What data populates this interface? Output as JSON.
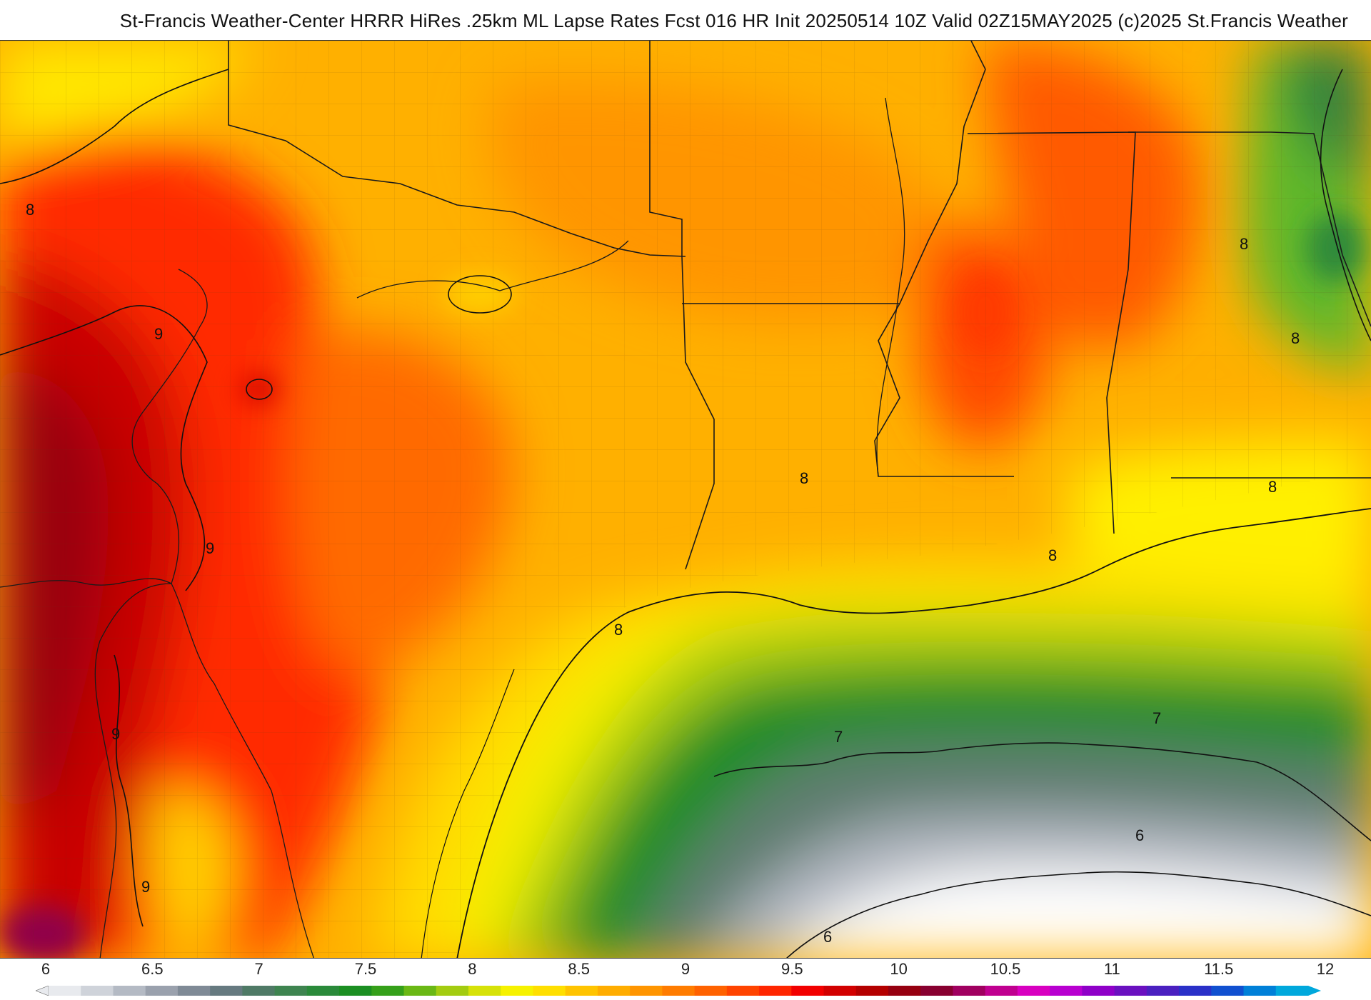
{
  "title": "St-Francis Weather-Center HRRR HiRes .25km ML Lapse Rates  Fcst 016 HR Init 20250514 10Z  Valid 02Z15MAY2025    (c)2025 St.Francis Weather",
  "contour_labels": [
    "8",
    "9",
    "9",
    "9",
    "9",
    "8",
    "8",
    "8",
    "8",
    "8",
    "8",
    "7",
    "7",
    "6",
    "6"
  ],
  "legend": {
    "ticks": [
      "6",
      "6.5",
      "7",
      "7.5",
      "8",
      "8.5",
      "9",
      "9.5",
      "10",
      "10.5",
      "11",
      "11.5",
      "12"
    ],
    "colors": [
      "#e8eaee",
      "#cfd3da",
      "#b4bac4",
      "#9aa1ad",
      "#7f8a96",
      "#667a80",
      "#4f7a66",
      "#3e8450",
      "#2a8a3a",
      "#1b8f22",
      "#35a01a",
      "#6ab815",
      "#a3cc10",
      "#d6e208",
      "#f6f200",
      "#ffdf00",
      "#ffc400",
      "#ffad00",
      "#ff9500",
      "#ff7c00",
      "#ff6200",
      "#ff4400",
      "#ff2600",
      "#f20000",
      "#d20000",
      "#b40000",
      "#960010",
      "#880030",
      "#a00060",
      "#c00090",
      "#d800c0",
      "#b800d0",
      "#8f00c8",
      "#6a10c0",
      "#4a20c0",
      "#2a30c8",
      "#1050d0",
      "#0080d8",
      "#00a8dc"
    ]
  }
}
